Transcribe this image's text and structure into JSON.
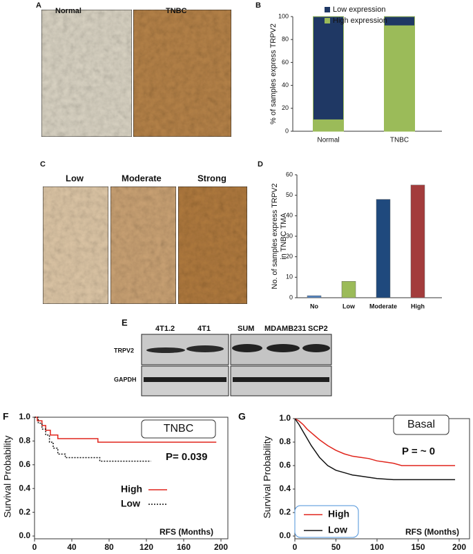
{
  "figure": {
    "panel_letters": [
      "A",
      "B",
      "C",
      "D",
      "E",
      "F",
      "G"
    ],
    "panel_a": {
      "labels": [
        "Normal",
        "TNBC"
      ]
    },
    "panel_c": {
      "labels": [
        "Low",
        "Moderate",
        "Strong"
      ]
    },
    "panel_e": {
      "lanes": [
        "4T1.2",
        "4T1",
        "SUM",
        "MDAMB231",
        "SCP2"
      ],
      "rows": [
        "TRPV2",
        "GAPDH"
      ]
    }
  },
  "chart_data": [
    {
      "type": "stacked_bar",
      "ylabel": "% of  samples express TRPV2",
      "categories": [
        "Normal",
        "TNBC"
      ],
      "series": [
        {
          "name": "High expression",
          "color": "#9bbb59",
          "values": [
            10,
            92
          ]
        },
        {
          "name": "Low expression",
          "color": "#1f3864",
          "values": [
            90,
            8
          ]
        }
      ],
      "ylim": [
        0,
        100
      ],
      "yticks": [
        0,
        20,
        40,
        60,
        80,
        100
      ],
      "legend": "top"
    },
    {
      "type": "bar",
      "ylabel": [
        "No. of samples express TRPV2",
        "in TNBC TMA"
      ],
      "categories": [
        "No",
        "Low",
        "Moderate",
        "High"
      ],
      "values": [
        1,
        8,
        48,
        55
      ],
      "colors": [
        "#4f81bd",
        "#9bbb59",
        "#1f497d",
        "#a33c3c"
      ],
      "ylim": [
        0,
        60
      ],
      "yticks": [
        0,
        10,
        20,
        30,
        40,
        50,
        60
      ]
    },
    {
      "type": "line",
      "title": "TNBC",
      "annotation": "P= 0.039",
      "xlabel": "RFS (Months)",
      "ylabel": "Survival Probability",
      "series": [
        {
          "name": "High",
          "color": "#e0241b",
          "dash": false,
          "x": [
            0,
            3,
            3,
            8,
            8,
            12,
            12,
            17,
            17,
            25,
            25,
            68,
            68,
            195
          ],
          "values": [
            1,
            1,
            0.97,
            0.97,
            0.93,
            0.93,
            0.89,
            0.89,
            0.85,
            0.85,
            0.82,
            0.82,
            0.79,
            0.79
          ]
        },
        {
          "name": "Low",
          "color": "#111111",
          "dash": true,
          "x": [
            0,
            4,
            4,
            8,
            8,
            12,
            12,
            16,
            16,
            20,
            20,
            25,
            25,
            33,
            33,
            70,
            70,
            125
          ],
          "values": [
            1,
            1,
            0.95,
            0.95,
            0.9,
            0.9,
            0.85,
            0.85,
            0.79,
            0.79,
            0.74,
            0.74,
            0.69,
            0.69,
            0.66,
            0.66,
            0.63,
            0.63
          ]
        }
      ],
      "xlim": [
        0,
        200
      ],
      "xticks": [
        0,
        40,
        80,
        120,
        160,
        200
      ],
      "ylim": [
        0,
        1
      ],
      "yticks": [
        {
          "value": 0,
          "label": "0.0"
        },
        0.2,
        0.4,
        0.6,
        0.8,
        {
          "value": 1,
          "label": "1.0"
        }
      ]
    },
    {
      "type": "line",
      "title": "Basal",
      "annotation": "P = ~ 0",
      "xlabel": "RFS (Months)",
      "ylabel": "Survival Probability",
      "series": [
        {
          "name": "High",
          "color": "#e0241b",
          "dash": false,
          "x": [
            0,
            5,
            10,
            15,
            20,
            25,
            30,
            40,
            50,
            60,
            70,
            80,
            90,
            100,
            110,
            120,
            130,
            150,
            175,
            195
          ],
          "values": [
            1,
            0.98,
            0.95,
            0.91,
            0.88,
            0.85,
            0.82,
            0.77,
            0.73,
            0.7,
            0.68,
            0.67,
            0.66,
            0.64,
            0.63,
            0.62,
            0.6,
            0.6,
            0.6,
            0.6
          ]
        },
        {
          "name": "Low",
          "color": "#111111",
          "dash": false,
          "x": [
            0,
            5,
            10,
            15,
            20,
            25,
            30,
            40,
            50,
            60,
            70,
            80,
            90,
            100,
            120,
            150,
            175,
            195
          ],
          "values": [
            1,
            0.95,
            0.89,
            0.83,
            0.77,
            0.72,
            0.67,
            0.6,
            0.56,
            0.54,
            0.52,
            0.51,
            0.5,
            0.49,
            0.48,
            0.48,
            0.48,
            0.48
          ]
        }
      ],
      "xlim": [
        0,
        200
      ],
      "xticks": [
        0,
        50,
        100,
        150,
        200
      ],
      "ylim": [
        0,
        1
      ],
      "yticks": [
        {
          "value": 0,
          "label": "0.0"
        },
        0.2,
        0.4,
        0.6,
        0.8,
        {
          "value": 1,
          "label": "1.0"
        }
      ]
    }
  ]
}
